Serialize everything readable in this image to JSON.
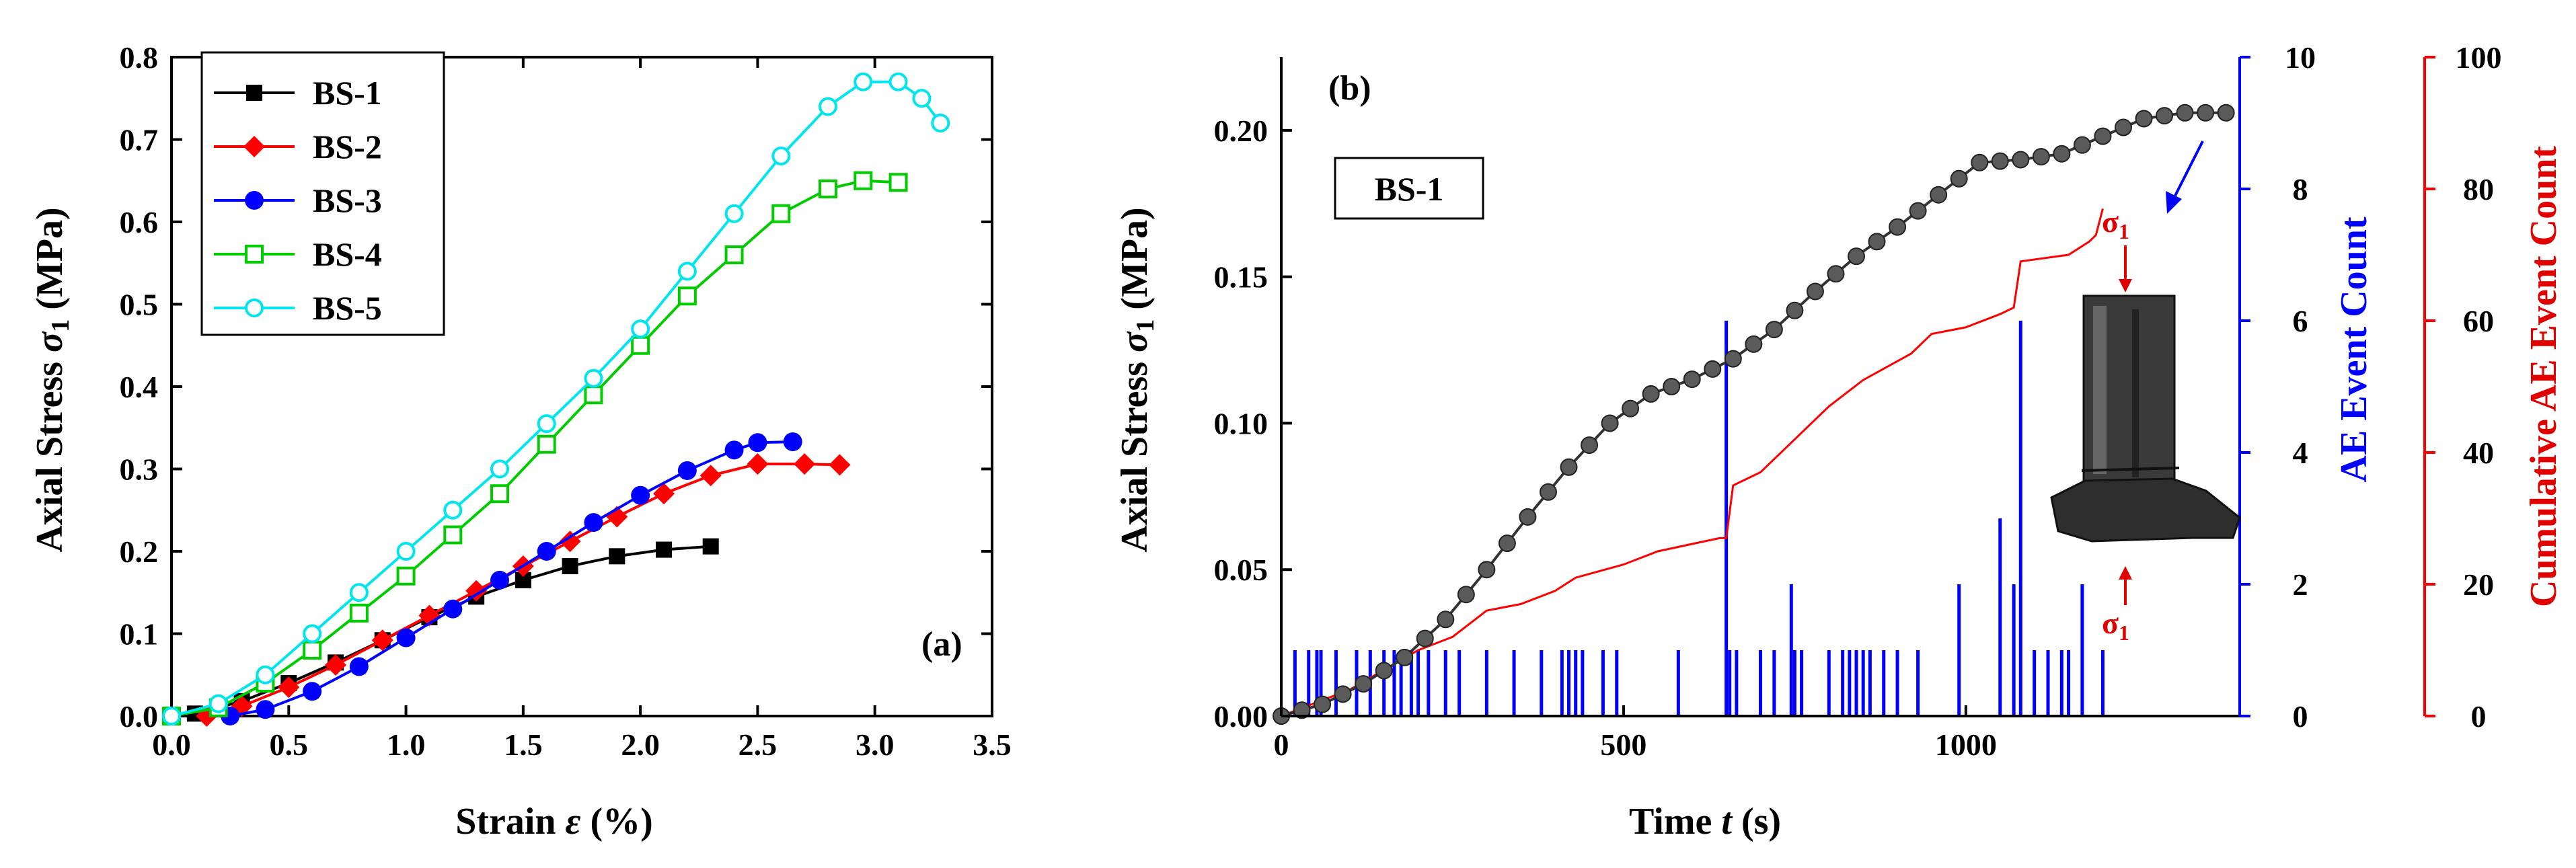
{
  "chart_data": [
    {
      "id": "a",
      "type": "line",
      "panel_label": "(a)",
      "xlabel": "Strain ",
      "xlabel_var": "ε",
      "xlabel_unit": " (%)",
      "ylabel": "Axial Stress ",
      "ylabel_var": "σ",
      "ylabel_sub": "1",
      "ylabel_unit": " (MPa)",
      "xlim": [
        0,
        3.5
      ],
      "ylim": [
        0,
        0.8
      ],
      "xticks": [
        "0.0",
        "0.5",
        "1.0",
        "1.5",
        "2.0",
        "2.5",
        "3.0",
        "3.5"
      ],
      "yticks": [
        "0.0",
        "0.1",
        "0.2",
        "0.3",
        "0.4",
        "0.5",
        "0.6",
        "0.7",
        "0.8"
      ],
      "legend_position": "top-left",
      "series": [
        {
          "name": "BS-1",
          "color": "#000000",
          "marker": "square-filled",
          "x": [
            0.0,
            0.1,
            0.3,
            0.5,
            0.7,
            0.9,
            1.1,
            1.3,
            1.5,
            1.7,
            1.9,
            2.1,
            2.3
          ],
          "y": [
            0.0,
            0.003,
            0.018,
            0.04,
            0.065,
            0.092,
            0.12,
            0.145,
            0.165,
            0.182,
            0.194,
            0.202,
            0.206
          ]
        },
        {
          "name": "BS-2",
          "color": "#ff0000",
          "marker": "diamond-filled",
          "x": [
            0.15,
            0.3,
            0.5,
            0.7,
            0.9,
            1.1,
            1.3,
            1.5,
            1.7,
            1.9,
            2.1,
            2.3,
            2.5,
            2.7,
            2.85
          ],
          "y": [
            0.0,
            0.012,
            0.035,
            0.062,
            0.092,
            0.122,
            0.152,
            0.182,
            0.212,
            0.242,
            0.27,
            0.292,
            0.306,
            0.306,
            0.305
          ]
        },
        {
          "name": "BS-3",
          "color": "#0000ff",
          "marker": "circle-filled",
          "x": [
            0.25,
            0.4,
            0.6,
            0.8,
            1.0,
            1.2,
            1.4,
            1.6,
            1.8,
            2.0,
            2.2,
            2.4,
            2.5,
            2.65
          ],
          "y": [
            0.0,
            0.008,
            0.03,
            0.06,
            0.095,
            0.13,
            0.165,
            0.2,
            0.235,
            0.268,
            0.298,
            0.323,
            0.332,
            0.333
          ]
        },
        {
          "name": "BS-4",
          "color": "#00cc00",
          "marker": "square-open",
          "x": [
            0.0,
            0.2,
            0.4,
            0.6,
            0.8,
            1.0,
            1.2,
            1.4,
            1.6,
            1.8,
            2.0,
            2.2,
            2.4,
            2.6,
            2.8,
            2.95,
            3.1
          ],
          "y": [
            0.0,
            0.01,
            0.04,
            0.08,
            0.125,
            0.17,
            0.22,
            0.27,
            0.33,
            0.39,
            0.45,
            0.51,
            0.56,
            0.61,
            0.64,
            0.65,
            0.648
          ]
        },
        {
          "name": "BS-5",
          "color": "#00e5ee",
          "marker": "circle-open",
          "x": [
            0.0,
            0.2,
            0.4,
            0.6,
            0.8,
            1.0,
            1.2,
            1.4,
            1.6,
            1.8,
            2.0,
            2.2,
            2.4,
            2.6,
            2.8,
            2.95,
            3.1,
            3.2,
            3.28
          ],
          "y": [
            0.0,
            0.015,
            0.05,
            0.1,
            0.15,
            0.2,
            0.25,
            0.3,
            0.355,
            0.41,
            0.47,
            0.54,
            0.61,
            0.68,
            0.74,
            0.77,
            0.77,
            0.75,
            0.72
          ]
        }
      ]
    },
    {
      "id": "b",
      "type": "line+bar",
      "panel_label": "(b)",
      "sample_label": "BS-1",
      "xlabel": "Time ",
      "xlabel_var": "t",
      "xlabel_unit": " (s)",
      "y1label": "Axial Stress ",
      "y1label_var": "σ",
      "y1label_sub": "1",
      "y1label_unit": " (MPa)",
      "y2label": "AE Event Count",
      "y3label": "Cumulative AE Event Count",
      "xlim": [
        0,
        1400
      ],
      "y1lim": [
        0,
        0.225
      ],
      "y2lim": [
        0,
        10
      ],
      "y3lim": [
        0,
        100
      ],
      "xticks": [
        "0",
        "500",
        "1000"
      ],
      "y1ticks": [
        "0.00",
        "0.05",
        "0.10",
        "0.15",
        "0.20"
      ],
      "y2ticks": [
        "0",
        "2",
        "4",
        "6",
        "8",
        "10"
      ],
      "y3ticks": [
        "0",
        "20",
        "40",
        "60",
        "80",
        "100"
      ],
      "sigma_label": "σ",
      "sigma_sub": "1",
      "stress_color": "#555555",
      "ae_color": "#0000ff",
      "cumulative_color": "#ff0000",
      "stress": {
        "t": [
          0,
          60,
          120,
          180,
          240,
          300,
          360,
          420,
          480,
          540,
          600,
          660,
          720,
          780,
          840,
          900,
          960,
          1020,
          1080,
          1140,
          1200,
          1260,
          1320,
          1380
        ],
        "stress": [
          0.0,
          0.004,
          0.011,
          0.02,
          0.033,
          0.05,
          0.068,
          0.085,
          0.1,
          0.11,
          0.115,
          0.122,
          0.132,
          0.145,
          0.157,
          0.167,
          0.178,
          0.189,
          0.19,
          0.192,
          0.198,
          0.204,
          0.206,
          0.206
        ]
      },
      "ae_events": {
        "t": [
          20,
          40,
          52,
          58,
          80,
          110,
          130,
          150,
          165,
          175,
          190,
          200,
          215,
          240,
          260,
          300,
          340,
          380,
          410,
          420,
          430,
          440,
          470,
          490,
          580,
          650,
          655,
          665,
          700,
          720,
          745,
          750,
          760,
          800,
          820,
          830,
          840,
          850,
          860,
          880,
          900,
          930,
          990,
          1050,
          1070,
          1080,
          1100,
          1120,
          1140,
          1150,
          1170,
          1200
        ],
        "count": [
          1,
          1,
          1,
          1,
          1,
          1,
          1,
          1,
          1,
          1,
          1,
          1,
          1,
          1,
          1,
          1,
          1,
          1,
          1,
          1,
          1,
          1,
          1,
          1,
          1,
          6,
          1,
          1,
          1,
          1,
          2,
          1,
          1,
          1,
          1,
          1,
          1,
          1,
          1,
          1,
          1,
          1,
          2,
          3,
          2,
          6,
          1,
          1,
          1,
          1,
          2,
          1
        ]
      },
      "cumulative": {
        "t": [
          0,
          50,
          100,
          150,
          200,
          250,
          300,
          350,
          400,
          430,
          500,
          550,
          640,
          650,
          660,
          700,
          750,
          800,
          850,
          920,
          950,
          1000,
          1050,
          1070,
          1080,
          1150,
          1180,
          1190,
          1200
        ],
        "count": [
          0,
          2,
          4,
          7,
          10,
          12,
          16,
          17,
          19,
          21,
          23,
          25,
          27,
          27,
          35,
          37,
          42,
          47,
          51,
          55,
          58,
          59,
          61,
          62,
          69,
          70,
          72,
          73,
          77
        ]
      }
    }
  ]
}
